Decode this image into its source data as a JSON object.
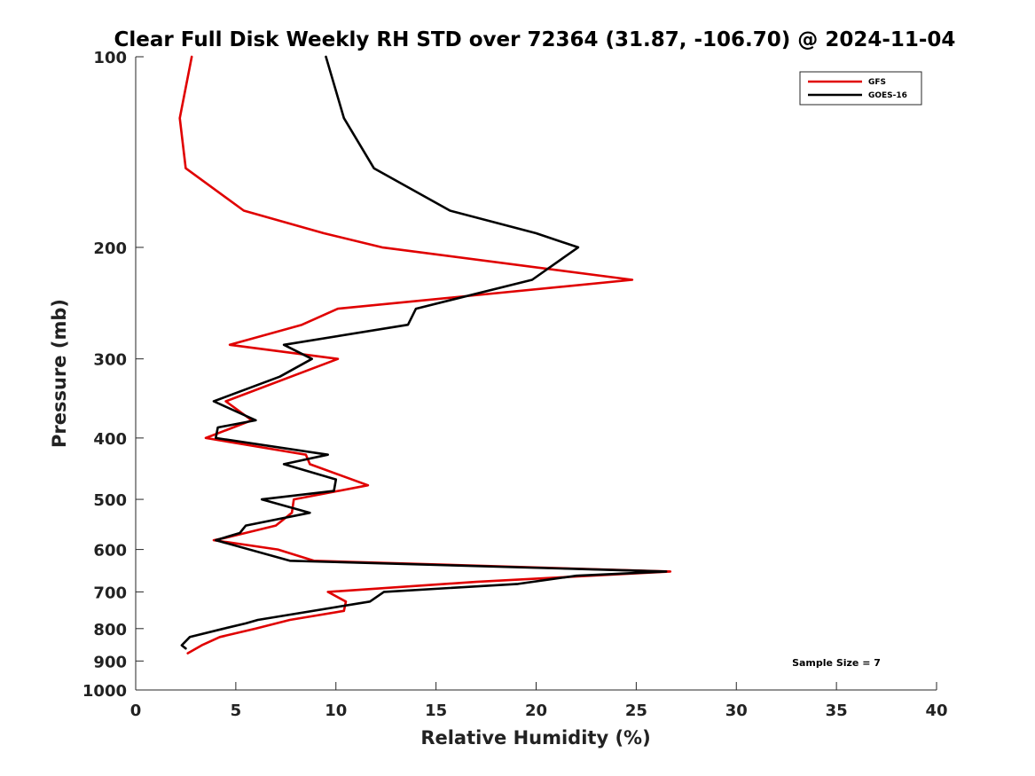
{
  "chart_data": {
    "type": "line",
    "title": "Clear Full Disk Weekly RH STD over 72364 (31.87, -106.70) @ 2024-11-04",
    "xlabel": "Relative Humidity (%)",
    "ylabel": "Pressure (mb)",
    "xlim": [
      0,
      40
    ],
    "ylim": [
      100,
      1000
    ],
    "y_scale": "log",
    "y_reversed": true,
    "x_ticks": [
      "0",
      "5",
      "10",
      "15",
      "20",
      "25",
      "30",
      "35",
      "40"
    ],
    "y_ticks": [
      "100",
      "200",
      "300",
      "400",
      "500",
      "600",
      "700",
      "800",
      "900",
      "1000"
    ],
    "legend_position": "top-right",
    "annotation": "Sample Size = 7",
    "series": [
      {
        "name": "GFS",
        "color": "#e00000",
        "points": [
          [
            2.8,
            100
          ],
          [
            2.2,
            125
          ],
          [
            2.5,
            150
          ],
          [
            5.4,
            175
          ],
          [
            9.4,
            190
          ],
          [
            12.3,
            200
          ],
          [
            24.8,
            225
          ],
          [
            10.1,
            250
          ],
          [
            8.3,
            265
          ],
          [
            4.7,
            285
          ],
          [
            10.1,
            300
          ],
          [
            4.5,
            350
          ],
          [
            5.8,
            375
          ],
          [
            3.5,
            400
          ],
          [
            8.5,
            425
          ],
          [
            8.7,
            440
          ],
          [
            11.6,
            475
          ],
          [
            7.9,
            500
          ],
          [
            7.8,
            525
          ],
          [
            7.0,
            550
          ],
          [
            4.5,
            575
          ],
          [
            3.9,
            580
          ],
          [
            7.1,
            600
          ],
          [
            8.9,
            625
          ],
          [
            26.7,
            650
          ],
          [
            17.0,
            675
          ],
          [
            9.6,
            700
          ],
          [
            10.5,
            725
          ],
          [
            10.4,
            750
          ],
          [
            7.7,
            775
          ],
          [
            6.0,
            800
          ],
          [
            4.2,
            825
          ],
          [
            3.3,
            850
          ],
          [
            2.6,
            875
          ]
        ]
      },
      {
        "name": "GOES-16",
        "color": "#000000",
        "points": [
          [
            9.5,
            100
          ],
          [
            10.4,
            125
          ],
          [
            11.9,
            150
          ],
          [
            15.7,
            175
          ],
          [
            20.0,
            190
          ],
          [
            22.1,
            200
          ],
          [
            19.8,
            225
          ],
          [
            14.0,
            250
          ],
          [
            13.6,
            265
          ],
          [
            7.4,
            285
          ],
          [
            8.8,
            300
          ],
          [
            7.2,
            320
          ],
          [
            3.9,
            350
          ],
          [
            6.0,
            375
          ],
          [
            4.1,
            385
          ],
          [
            4.0,
            400
          ],
          [
            9.6,
            425
          ],
          [
            7.4,
            440
          ],
          [
            10.0,
            465
          ],
          [
            9.9,
            485
          ],
          [
            6.3,
            500
          ],
          [
            8.7,
            525
          ],
          [
            5.5,
            550
          ],
          [
            5.2,
            565
          ],
          [
            4.0,
            580
          ],
          [
            7.7,
            625
          ],
          [
            26.5,
            650
          ],
          [
            22.0,
            660
          ],
          [
            19.1,
            680
          ],
          [
            12.4,
            700
          ],
          [
            11.7,
            725
          ],
          [
            6.1,
            775
          ],
          [
            5.5,
            785
          ],
          [
            4.4,
            800
          ],
          [
            2.7,
            825
          ],
          [
            2.3,
            850
          ],
          [
            2.5,
            860
          ]
        ]
      }
    ]
  }
}
